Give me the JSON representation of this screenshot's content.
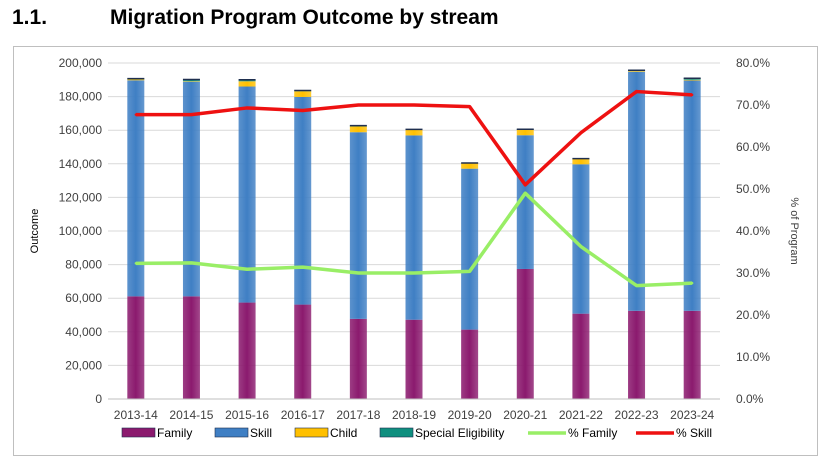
{
  "section": {
    "number": "1.1.",
    "title": "Migration Program Outcome by stream"
  },
  "colors": {
    "family": "#8b1a6e",
    "skill": "#3f7fc4",
    "child": "#ffc000",
    "special_eligibility": "#0f8f7f",
    "pct_family": "#99ee66",
    "pct_skill": "#ee1111",
    "gridline": "#d9d9d9",
    "axis_text": "#404040"
  },
  "chart_data": {
    "type": "bar",
    "stacked": true,
    "title": "Migration Program Outcome by stream",
    "categories": [
      "2013-14",
      "2014-15",
      "2015-16",
      "2016-17",
      "2017-18",
      "2018-19",
      "2019-20",
      "2020-21",
      "2021-22",
      "2022-23",
      "2023-24"
    ],
    "ylabel": "Outcome",
    "ylim": [
      0,
      200000
    ],
    "yticks": [
      "0",
      "20,000",
      "40,000",
      "60,000",
      "80,000",
      "100,000",
      "120,000",
      "140,000",
      "160,000",
      "180,000",
      "200,000"
    ],
    "y2label": "% of Program",
    "y2lim": [
      0,
      80
    ],
    "y2ticks": [
      "0.0%",
      "10.0%",
      "20.0%",
      "30.0%",
      "40.0%",
      "50.0%",
      "60.0%",
      "70.0%",
      "80.0%"
    ],
    "grid": true,
    "legend_position": "bottom",
    "series": [
      {
        "name": "Family",
        "type": "bar",
        "axis": "left",
        "values": [
          61100,
          61100,
          57400,
          56200,
          47700,
          47200,
          41300,
          77400,
          50800,
          52500,
          52500
        ]
      },
      {
        "name": "Skill",
        "type": "bar",
        "axis": "left",
        "values": [
          128600,
          127700,
          128600,
          123600,
          111100,
          109700,
          95800,
          79600,
          88900,
          142300,
          137100
        ]
      },
      {
        "name": "Child",
        "type": "bar",
        "axis": "left",
        "values": [
          500,
          300,
          3100,
          3400,
          3400,
          3400,
          3300,
          3300,
          3200,
          400,
          400
        ]
      },
      {
        "name": "Special Eligibility",
        "type": "bar",
        "axis": "left",
        "values": [
          500,
          1100,
          900,
          400,
          500,
          200,
          100,
          300,
          200,
          500,
          900
        ]
      },
      {
        "name": "% Family",
        "type": "line",
        "axis": "right",
        "values": [
          32.3,
          32.4,
          30.9,
          31.4,
          30.0,
          30.0,
          30.4,
          49.0,
          36.3,
          27.0,
          27.6
        ]
      },
      {
        "name": "% Skill",
        "type": "line",
        "axis": "right",
        "values": [
          67.7,
          67.7,
          69.3,
          68.7,
          70.0,
          70.0,
          69.6,
          51.0,
          63.4,
          73.2,
          72.4
        ]
      }
    ]
  }
}
